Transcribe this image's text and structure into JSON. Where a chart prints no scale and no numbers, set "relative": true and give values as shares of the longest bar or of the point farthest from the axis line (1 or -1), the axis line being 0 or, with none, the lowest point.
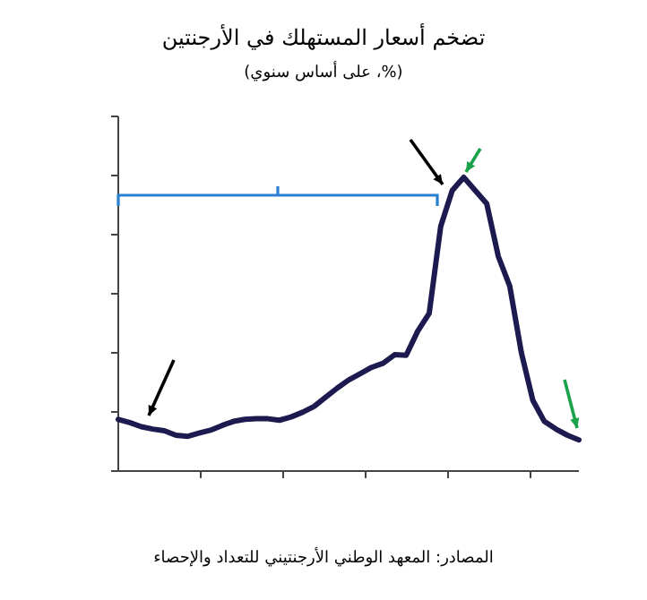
{
  "chart_data": {
    "type": "line",
    "title": "تضخم أسعار المستهلك في الأرجنتين",
    "subtitle": "(%، على أساس سنوي)",
    "annotations": [
      "المصادر: المعهد الوطني الأرجنتيني للتعداد والإحصاء"
    ],
    "relative": true,
    "categories": [
      null,
      null,
      null,
      null,
      null,
      null,
      null,
      null,
      null,
      null,
      null,
      null,
      null,
      null,
      null,
      null,
      null,
      null,
      null,
      null,
      null,
      null,
      null,
      null,
      null,
      null,
      null,
      null,
      null,
      null,
      null,
      null,
      null,
      null,
      null,
      null,
      null,
      null,
      null,
      null,
      null
    ],
    "series": [
      {
        "color": "#1c1a4f",
        "values": [
          0.176,
          0.165,
          0.151,
          0.143,
          0.137,
          0.122,
          0.118,
          0.129,
          0.139,
          0.155,
          0.169,
          0.176,
          0.178,
          0.178,
          0.173,
          0.184,
          0.2,
          0.22,
          0.251,
          0.282,
          0.31,
          0.331,
          0.353,
          0.367,
          0.396,
          0.394,
          0.476,
          0.537,
          0.833,
          0.955,
          1,
          0.955,
          0.91,
          0.731,
          0.629,
          0.404,
          0.241,
          0.169,
          0.143,
          0.122,
          0.106
        ]
      }
    ],
    "line_style": "solid"
  }
}
